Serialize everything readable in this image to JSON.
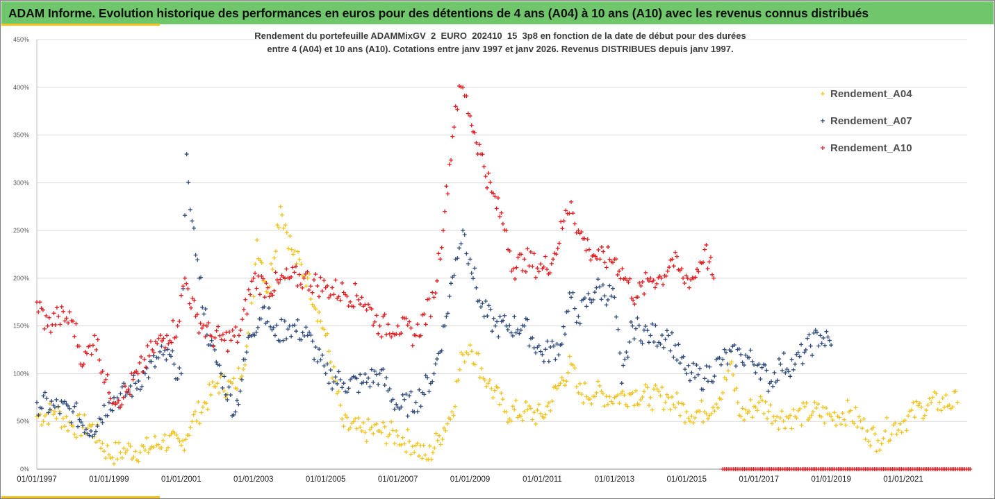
{
  "header": {
    "title": "ADAM Informe. Evolution historique des performances en euros pour des détentions de 4 ans (A04) à 10 ans (A10) avec les revenus connus distribués"
  },
  "colors": {
    "banner": "#70c66b",
    "A04": "#f2c21b",
    "A07": "#2e4a7a",
    "A10": "#e3191c"
  },
  "chart_data": {
    "type": "scatter",
    "title_line1": "Rendement du portefeuille ADAMMixGV_2_EURO_202410_15_3p8  en fonction de la date de début pour des durées",
    "title_line2": "entre 4 (A04) et 10 ans (A10). Cotations entre janv 1997 et janv 2026. Revenus DISTRIBUES depuis janv 1997.",
    "xlabel": "",
    "ylabel": "",
    "x_range": [
      1997.0,
      2022.77
    ],
    "y_range": [
      0,
      450
    ],
    "y_ticks": [
      0,
      50,
      100,
      150,
      200,
      250,
      300,
      350,
      400,
      450
    ],
    "y_tick_labels": [
      "0%",
      "50%",
      "100%",
      "150%",
      "200%",
      "250%",
      "300%",
      "350%",
      "400%",
      "450%"
    ],
    "x_ticks": [
      1997,
      1999,
      2001,
      2003,
      2005,
      2007,
      2009,
      2011,
      2013,
      2015,
      2017,
      2019,
      2021
    ],
    "x_tick_labels": [
      "01/01/1997",
      "01/01/1999",
      "01/01/2001",
      "01/01/2003",
      "01/01/2005",
      "01/01/2007",
      "01/01/2009",
      "01/01/2011",
      "01/01/2013",
      "01/01/2015",
      "01/01/2017",
      "01/01/2019",
      "01/01/2021"
    ],
    "grid": true,
    "legend_position": "top-right",
    "series": [
      {
        "name": "Rendement_A04",
        "key": "A04",
        "x": [
          1997.0,
          1997.5,
          1998.0,
          1998.5,
          1999.0,
          1999.5,
          2000.0,
          2000.5,
          2001.0,
          2001.3,
          2001.6,
          2002.0,
          2002.5,
          2002.9,
          2003.1,
          2003.4,
          2003.75,
          2004.1,
          2004.5,
          2005.0,
          2005.5,
          2006.0,
          2006.5,
          2007.0,
          2007.5,
          2007.8,
          2008.1,
          2008.5,
          2008.8,
          2009.0,
          2009.5,
          2010.0,
          2010.5,
          2011.0,
          2011.5,
          2011.8,
          2012.0,
          2012.5,
          2013.0,
          2013.5,
          2014.0,
          2014.5,
          2015.0,
          2015.5,
          2016.0,
          2016.2,
          2016.5,
          2017.0,
          2017.5,
          2018.0,
          2018.5,
          2019.0,
          2019.5,
          2020.0,
          2020.3,
          2020.5,
          2021.0,
          2021.5,
          2022.0,
          2022.5
        ],
        "y": [
          55,
          60,
          45,
          45,
          15,
          20,
          20,
          30,
          25,
          50,
          65,
          90,
          85,
          140,
          240,
          185,
          275,
          225,
          200,
          140,
          45,
          40,
          40,
          35,
          25,
          10,
          30,
          60,
          120,
          130,
          90,
          60,
          60,
          55,
          90,
          110,
          80,
          80,
          75,
          80,
          75,
          75,
          60,
          60,
          80,
          110,
          55,
          70,
          55,
          55,
          60,
          55,
          60,
          40,
          30,
          40,
          50,
          65,
          70,
          70
        ]
      },
      {
        "name": "Rendement_A07",
        "key": "A07",
        "x": [
          1997.0,
          1997.5,
          1998.0,
          1998.5,
          1999.0,
          1999.5,
          2000.0,
          2000.5,
          2000.8,
          2001.0,
          2001.15,
          2001.3,
          2001.5,
          2001.8,
          2002.1,
          2002.5,
          2002.9,
          2003.3,
          2003.6,
          2004.0,
          2004.5,
          2005.0,
          2005.5,
          2006.0,
          2006.5,
          2007.0,
          2007.5,
          2008.0,
          2008.3,
          2008.6,
          2008.8,
          2009.0,
          2009.3,
          2009.7,
          2010.0,
          2010.5,
          2011.0,
          2011.5,
          2011.8,
          2012.0,
          2012.5,
          2013.0,
          2013.2,
          2013.5,
          2014.0,
          2014.5,
          2015.0,
          2015.5,
          2016.0,
          2016.5,
          2017.0,
          2017.3,
          2017.6,
          2018.0,
          2018.3,
          2018.7,
          2019.0
        ],
        "y": [
          70,
          65,
          60,
          40,
          70,
          80,
          100,
          120,
          110,
          100,
          330,
          260,
          200,
          130,
          100,
          60,
          140,
          170,
          140,
          150,
          140,
          100,
          90,
          90,
          100,
          65,
          70,
          100,
          150,
          220,
          250,
          220,
          170,
          150,
          150,
          150,
          120,
          130,
          180,
          160,
          190,
          180,
          90,
          150,
          140,
          140,
          100,
          95,
          115,
          120,
          110,
          90,
          110,
          110,
          125,
          140,
          130
        ]
      },
      {
        "name": "Rendement_A10",
        "key": "A10",
        "x": [
          1997.0,
          1997.3,
          1997.6,
          1998.0,
          1998.3,
          1998.6,
          1999.0,
          1999.4,
          1999.8,
          2000.2,
          2000.6,
          2000.9,
          2001.1,
          2001.4,
          2001.8,
          2002.2,
          2002.6,
          2003.0,
          2003.4,
          2003.7,
          2004.0,
          2004.4,
          2005.0,
          2005.5,
          2006.0,
          2006.5,
          2007.0,
          2007.5,
          2008.0,
          2008.3,
          2008.6,
          2008.8,
          2009.0,
          2009.3,
          2009.6,
          2010.0,
          2010.2,
          2010.5,
          2011.0,
          2011.3,
          2011.6,
          2011.8,
          2012.0,
          2012.3,
          2012.6,
          2013.0,
          2013.3,
          2013.6,
          2014.0,
          2014.3,
          2014.6,
          2014.9,
          2015.2,
          2015.5,
          2015.75
        ],
        "y": [
          175,
          150,
          160,
          155,
          110,
          140,
          80,
          75,
          100,
          125,
          140,
          150,
          200,
          160,
          140,
          135,
          140,
          200,
          190,
          195,
          200,
          200,
          190,
          185,
          180,
          150,
          150,
          140,
          180,
          270,
          380,
          400,
          370,
          330,
          290,
          250,
          210,
          220,
          210,
          220,
          260,
          280,
          250,
          230,
          220,
          220,
          200,
          180,
          200,
          200,
          220,
          200,
          200,
          230,
          200
        ]
      }
    ],
    "zero_band": {
      "name": "zero_marker_run",
      "x_start": 2016.0,
      "x_end": 2022.85,
      "y": 0
    }
  }
}
